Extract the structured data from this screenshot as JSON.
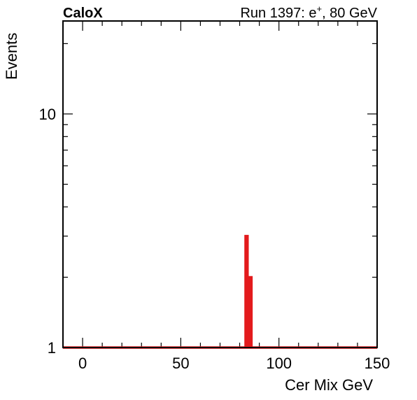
{
  "chart_data": {
    "type": "line",
    "title_left": "CaloX",
    "title_right": {
      "prefix": "Run 1397: e",
      "superscript": "+",
      "suffix": ", 80 GeV"
    },
    "xlabel": "Cer Mix GeV",
    "ylabel": "Events",
    "y_scale": "log",
    "xlim": [
      -10,
      150
    ],
    "ylim": [
      1,
      25
    ],
    "x_major_ticks": [
      0,
      50,
      100,
      150
    ],
    "x_tick_labels": [
      "0",
      "50",
      "100",
      "150"
    ],
    "y_tick_values": [
      1,
      10
    ],
    "y_tick_labels": [
      "1",
      "10"
    ],
    "grid": false,
    "line_color": "#e31a1c",
    "series": [
      {
        "values_x": [
          -10,
          83,
          83,
          84,
          84,
          85,
          85,
          86,
          86,
          150
        ],
        "values_y": [
          1,
          1,
          3,
          3,
          1,
          1,
          2,
          2,
          1,
          1
        ]
      }
    ]
  }
}
